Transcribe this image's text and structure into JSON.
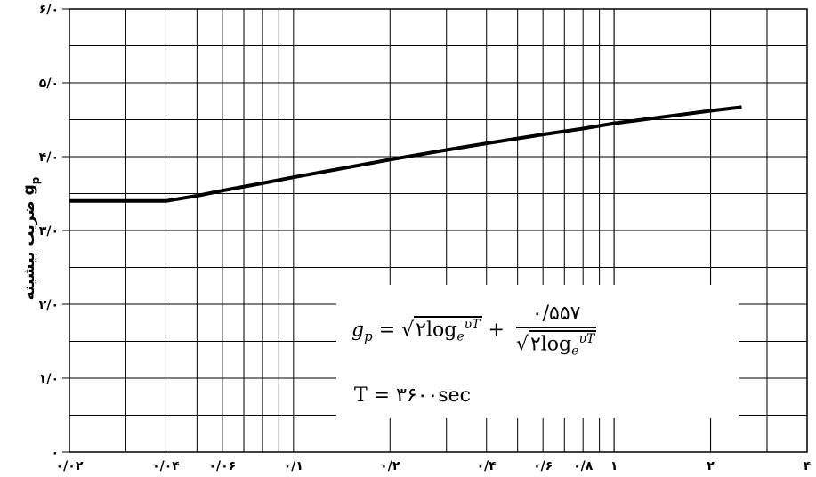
{
  "chart_data": {
    "type": "line",
    "title": "",
    "xlabel": "",
    "ylabel": "ضریب بیشینه g",
    "ylabel_subscript": "p",
    "x_scale": "log",
    "xlim": [
      0.02,
      4
    ],
    "ylim": [
      0,
      6
    ],
    "x_ticks": [
      {
        "value": 0.02,
        "label": "۰/۰۲"
      },
      {
        "value": 0.04,
        "label": "۰/۰۴"
      },
      {
        "value": 0.06,
        "label": "۰/۰۶"
      },
      {
        "value": 0.1,
        "label": "۰/۱"
      },
      {
        "value": 0.2,
        "label": "۰/۲"
      },
      {
        "value": 0.4,
        "label": "۰/۴"
      },
      {
        "value": 0.6,
        "label": "۰/۶"
      },
      {
        "value": 0.8,
        "label": "۰/۸"
      },
      {
        "value": 1,
        "label": "۱"
      },
      {
        "value": 2,
        "label": "۲"
      },
      {
        "value": 4,
        "label": "۴"
      }
    ],
    "y_ticks": [
      {
        "value": 0,
        "label": "۰"
      },
      {
        "value": 1,
        "label": "۱/۰"
      },
      {
        "value": 2,
        "label": "۲/۰"
      },
      {
        "value": 3,
        "label": "۳/۰"
      },
      {
        "value": 4,
        "label": "۴/۰"
      },
      {
        "value": 5,
        "label": "۵/۰"
      },
      {
        "value": 6,
        "label": "۶/۰"
      }
    ],
    "grid": true,
    "series": [
      {
        "x": [
          0.02,
          0.04,
          0.05,
          0.06,
          0.08,
          0.1,
          0.15,
          0.2,
          0.3,
          0.4,
          0.6,
          0.8,
          1,
          1.5,
          2,
          2.5
        ],
        "y": [
          3.4,
          3.4,
          3.47,
          3.54,
          3.64,
          3.72,
          3.86,
          3.96,
          4.09,
          4.18,
          4.3,
          4.38,
          4.45,
          4.55,
          4.62,
          4.67
        ]
      }
    ]
  },
  "formula": {
    "gp": "g",
    "gp_sub": "p",
    "equals": " = ",
    "sqrt_body": "۲log",
    "e_sub": "e",
    "vT_sup": "υT",
    "plus": " + ",
    "numerator": "۰/۵۵۷",
    "t_line": "T = ۳۶۰۰sec"
  }
}
